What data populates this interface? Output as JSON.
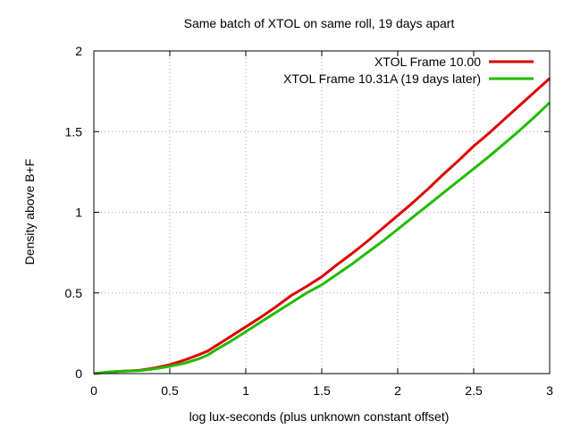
{
  "chart_data": {
    "type": "line",
    "title": "Same batch of XTOL on same roll, 19 days apart",
    "xlabel": "log lux-seconds (plus unknown constant offset)",
    "ylabel": "Density above B+F",
    "xlim": [
      0,
      3
    ],
    "ylim": [
      0,
      2
    ],
    "x_ticks": [
      "0",
      "0.5",
      "1",
      "1.5",
      "2",
      "2.5",
      "3"
    ],
    "y_ticks": [
      "0",
      "0.5",
      "1",
      "1.5",
      "2"
    ],
    "grid": true,
    "legend_position": "top-right",
    "series": [
      {
        "name": "XTOL Frame 10.00",
        "color": "#dd0000",
        "x": [
          0,
          0.1,
          0.2,
          0.3,
          0.4,
          0.5,
          0.6,
          0.7,
          0.75,
          0.8,
          0.9,
          1.0,
          1.1,
          1.2,
          1.3,
          1.4,
          1.5,
          1.6,
          1.7,
          1.8,
          1.9,
          2.0,
          2.1,
          2.2,
          2.3,
          2.4,
          2.5,
          2.6,
          2.7,
          2.8,
          2.9,
          3.0
        ],
        "y": [
          0.0,
          0.01,
          0.015,
          0.02,
          0.035,
          0.055,
          0.085,
          0.12,
          0.14,
          0.17,
          0.23,
          0.29,
          0.35,
          0.415,
          0.485,
          0.54,
          0.6,
          0.675,
          0.745,
          0.82,
          0.9,
          0.98,
          1.06,
          1.145,
          1.235,
          1.32,
          1.41,
          1.49,
          1.575,
          1.66,
          1.745,
          1.83
        ]
      },
      {
        "name": "XTOL Frame 10.31A (19 days later)",
        "color": "#22bb00",
        "x": [
          0,
          0.1,
          0.2,
          0.3,
          0.4,
          0.5,
          0.6,
          0.7,
          0.75,
          0.8,
          0.9,
          1.0,
          1.1,
          1.2,
          1.3,
          1.4,
          1.5,
          1.6,
          1.7,
          1.8,
          1.9,
          2.0,
          2.1,
          2.2,
          2.3,
          2.4,
          2.5,
          2.6,
          2.7,
          2.8,
          2.9,
          3.0
        ],
        "y": [
          0.0,
          0.01,
          0.015,
          0.018,
          0.03,
          0.045,
          0.065,
          0.095,
          0.115,
          0.145,
          0.2,
          0.26,
          0.32,
          0.38,
          0.44,
          0.5,
          0.55,
          0.615,
          0.68,
          0.75,
          0.82,
          0.895,
          0.97,
          1.045,
          1.12,
          1.195,
          1.27,
          1.345,
          1.425,
          1.505,
          1.59,
          1.68
        ]
      }
    ]
  }
}
